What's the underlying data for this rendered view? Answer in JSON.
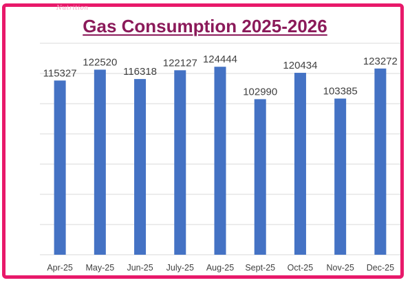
{
  "chart_data": {
    "type": "bar",
    "title": "Gas Consumption 2025-2026",
    "xlabel": "",
    "ylabel": "",
    "categories": [
      "Apr-25",
      "May-25",
      "Jun-25",
      "July-25",
      "Aug-25",
      "Sept-25",
      "Oct-25",
      "Nov-25",
      "Dec-25"
    ],
    "values": [
      115327,
      122520,
      116318,
      122127,
      124444,
      102990,
      120434,
      103385,
      123272
    ],
    "data_labels": [
      "115327",
      "122520",
      "116318",
      "122127",
      "124444",
      "102990",
      "120434",
      "103385",
      "123272"
    ],
    "ylim": [
      0,
      140000
    ],
    "grid": true,
    "legend": "none",
    "bar_color": "#4472c4"
  },
  "brand_mark": "Nutrition",
  "colors": {
    "frame": "#e8196a",
    "title": "#8b1a5a",
    "gridline": "#d9d9d9",
    "label": "#404040"
  }
}
